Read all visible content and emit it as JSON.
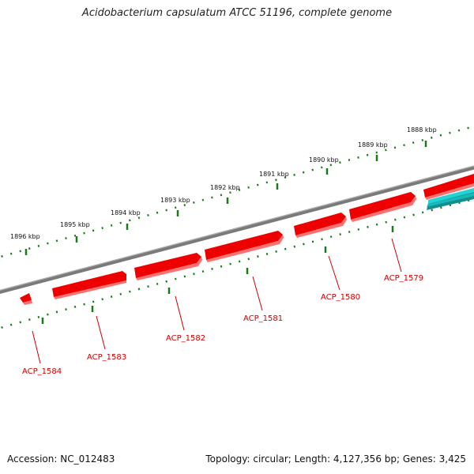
{
  "title": "Acidobacterium capsulatum ATCC 51196, complete genome",
  "footer": {
    "accession": "Accession: NC_012483",
    "topology": "Topology: circular; Length: 4,127,356 bp; Genes: 3,425"
  },
  "colors": {
    "backbone": "#808080",
    "forward_gene": "#ee0000",
    "reverse_gene": "#22cccc",
    "tick": "#1a7a1a",
    "gene_label": "#cc0000"
  },
  "ticks": [
    {
      "label": "1888 kbp"
    },
    {
      "label": "1889 kbp"
    },
    {
      "label": "1890 kbp"
    },
    {
      "label": "1891 kbp"
    },
    {
      "label": "1892 kbp"
    },
    {
      "label": "1893 kbp"
    },
    {
      "label": "1894 kbp"
    },
    {
      "label": "1895 kbp"
    },
    {
      "label": "1896 kbp"
    }
  ],
  "genes": [
    {
      "label": "ACP_1579"
    },
    {
      "label": "ACP_1580"
    },
    {
      "label": "ACP_1581"
    },
    {
      "label": "ACP_1582"
    },
    {
      "label": "ACP_1583"
    },
    {
      "label": "ACP_1584"
    }
  ]
}
